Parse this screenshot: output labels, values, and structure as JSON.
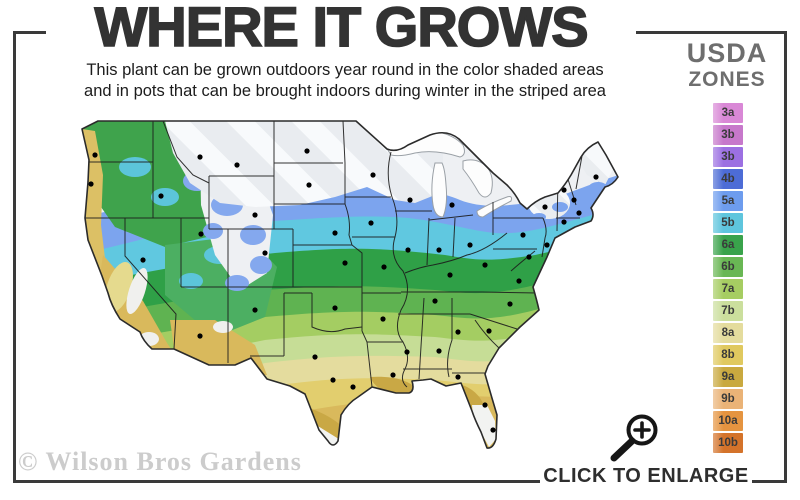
{
  "header": {
    "title": "WHERE IT GROWS",
    "subtitle_line1": "This plant can be grown outdoors year round in the color shaded areas",
    "subtitle_line2": "and in pots that can be brought indoors during winter in the striped area"
  },
  "legend": {
    "title_line1": "USDA",
    "title_line2": "ZONES",
    "zones": [
      {
        "label": "3a",
        "color": "#d988d6"
      },
      {
        "label": "3b",
        "color": "#c778cb"
      },
      {
        "label": "3b",
        "color": "#9c70e2"
      },
      {
        "label": "4b",
        "color": "#4d6cd6"
      },
      {
        "label": "5a",
        "color": "#6d9cee"
      },
      {
        "label": "5b",
        "color": "#5ec5dd"
      },
      {
        "label": "6a",
        "color": "#39a34b"
      },
      {
        "label": "6b",
        "color": "#69b754"
      },
      {
        "label": "7a",
        "color": "#a6cd62"
      },
      {
        "label": "7b",
        "color": "#cbdf9d"
      },
      {
        "label": "8a",
        "color": "#e4dc9d"
      },
      {
        "label": "8b",
        "color": "#e0c95f"
      },
      {
        "label": "9a",
        "color": "#c9a93f"
      },
      {
        "label": "9b",
        "color": "#eab377"
      },
      {
        "label": "10a",
        "color": "#e59440"
      },
      {
        "label": "10b",
        "color": "#d4732a"
      }
    ]
  },
  "map": {
    "watermark": "© Wilson Bros Gardens"
  },
  "footer": {
    "enlarge_label": "CLICK TO ENLARGE"
  }
}
